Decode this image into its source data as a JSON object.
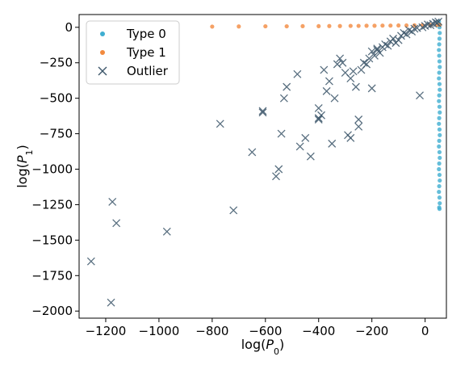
{
  "chart_data": {
    "type": "scatter",
    "xlabel": "log(P0)",
    "ylabel": "log(P1)",
    "xlim": [
      -1300,
      80
    ],
    "ylim": [
      -2050,
      90
    ],
    "xticks": [
      -1200,
      -1000,
      -800,
      -600,
      -400,
      -200,
      0
    ],
    "yticks": [
      0,
      -250,
      -500,
      -750,
      -1000,
      -1250,
      -1500,
      -1750,
      -2000
    ],
    "grid": false,
    "legend_placement": "top-left",
    "series": [
      {
        "name": "Type 0",
        "color": "#3eaed1",
        "marker": "dot",
        "points": [
          [
            52,
            40
          ],
          [
            53,
            20
          ],
          [
            54,
            0
          ],
          [
            55,
            -40
          ],
          [
            54,
            -80
          ],
          [
            53,
            -120
          ],
          [
            52,
            -160
          ],
          [
            53,
            -200
          ],
          [
            54,
            -240
          ],
          [
            55,
            -280
          ],
          [
            53,
            -320
          ],
          [
            52,
            -360
          ],
          [
            54,
            -400
          ],
          [
            55,
            -440
          ],
          [
            53,
            -480
          ],
          [
            52,
            -520
          ],
          [
            54,
            -560
          ],
          [
            55,
            -600
          ],
          [
            53,
            -640
          ],
          [
            52,
            -680
          ],
          [
            54,
            -720
          ],
          [
            55,
            -760
          ],
          [
            53,
            -800
          ],
          [
            52,
            -840
          ],
          [
            54,
            -880
          ],
          [
            55,
            -920
          ],
          [
            53,
            -960
          ],
          [
            52,
            -1000
          ],
          [
            54,
            -1040
          ],
          [
            55,
            -1080
          ],
          [
            53,
            -1120
          ],
          [
            52,
            -1160
          ],
          [
            54,
            -1200
          ],
          [
            55,
            -1240
          ],
          [
            53,
            -1270
          ],
          [
            54,
            -1280
          ]
        ]
      },
      {
        "name": "Type 1",
        "color": "#f28a3e",
        "marker": "dot",
        "points": [
          [
            -800,
            5
          ],
          [
            -700,
            6
          ],
          [
            -600,
            7
          ],
          [
            -520,
            7
          ],
          [
            -460,
            8
          ],
          [
            -400,
            8
          ],
          [
            -360,
            9
          ],
          [
            -320,
            9
          ],
          [
            -280,
            10
          ],
          [
            -250,
            10
          ],
          [
            -220,
            11
          ],
          [
            -190,
            11
          ],
          [
            -160,
            12
          ],
          [
            -130,
            12
          ],
          [
            -100,
            13
          ],
          [
            -70,
            13
          ],
          [
            -40,
            14
          ],
          [
            -10,
            15
          ],
          [
            20,
            16
          ],
          [
            45,
            17
          ],
          [
            55,
            18
          ]
        ]
      },
      {
        "name": "Outlier",
        "color": "#3c566a",
        "marker": "x",
        "points": [
          [
            -1255,
            -1650
          ],
          [
            -1180,
            -1940
          ],
          [
            -1175,
            -1230
          ],
          [
            -1160,
            -1380
          ],
          [
            -970,
            -1440
          ],
          [
            -720,
            -1290
          ],
          [
            -650,
            -880
          ],
          [
            -610,
            -600
          ],
          [
            -610,
            -590
          ],
          [
            -770,
            -680
          ],
          [
            -560,
            -1050
          ],
          [
            -550,
            -1000
          ],
          [
            -540,
            -750
          ],
          [
            -530,
            -500
          ],
          [
            -520,
            -420
          ],
          [
            -480,
            -330
          ],
          [
            -470,
            -840
          ],
          [
            -450,
            -780
          ],
          [
            -430,
            -910
          ],
          [
            -400,
            -650
          ],
          [
            -400,
            -640
          ],
          [
            -400,
            -570
          ],
          [
            -390,
            -620
          ],
          [
            -380,
            -300
          ],
          [
            -370,
            -450
          ],
          [
            -360,
            -380
          ],
          [
            -350,
            -820
          ],
          [
            -340,
            -500
          ],
          [
            -330,
            -260
          ],
          [
            -320,
            -220
          ],
          [
            -310,
            -250
          ],
          [
            -300,
            -320
          ],
          [
            -290,
            -760
          ],
          [
            -280,
            -780
          ],
          [
            -280,
            -360
          ],
          [
            -270,
            -310
          ],
          [
            -260,
            -420
          ],
          [
            -250,
            -650
          ],
          [
            -250,
            -700
          ],
          [
            -240,
            -300
          ],
          [
            -230,
            -250
          ],
          [
            -220,
            -260
          ],
          [
            -210,
            -220
          ],
          [
            -200,
            -170
          ],
          [
            -200,
            -430
          ],
          [
            -190,
            -200
          ],
          [
            -180,
            -150
          ],
          [
            -180,
            -160
          ],
          [
            -170,
            -180
          ],
          [
            -160,
            -140
          ],
          [
            -150,
            -120
          ],
          [
            -140,
            -130
          ],
          [
            -130,
            -100
          ],
          [
            -120,
            -80
          ],
          [
            -110,
            -110
          ],
          [
            -100,
            -90
          ],
          [
            -90,
            -60
          ],
          [
            -80,
            -40
          ],
          [
            -70,
            -50
          ],
          [
            -60,
            -20
          ],
          [
            -50,
            -30
          ],
          [
            -40,
            -10
          ],
          [
            -30,
            -5
          ],
          [
            -20,
            -480
          ],
          [
            -10,
            0
          ],
          [
            0,
            10
          ],
          [
            10,
            20
          ],
          [
            20,
            15
          ],
          [
            30,
            25
          ],
          [
            40,
            35
          ],
          [
            45,
            30
          ],
          [
            50,
            40
          ]
        ]
      }
    ]
  }
}
